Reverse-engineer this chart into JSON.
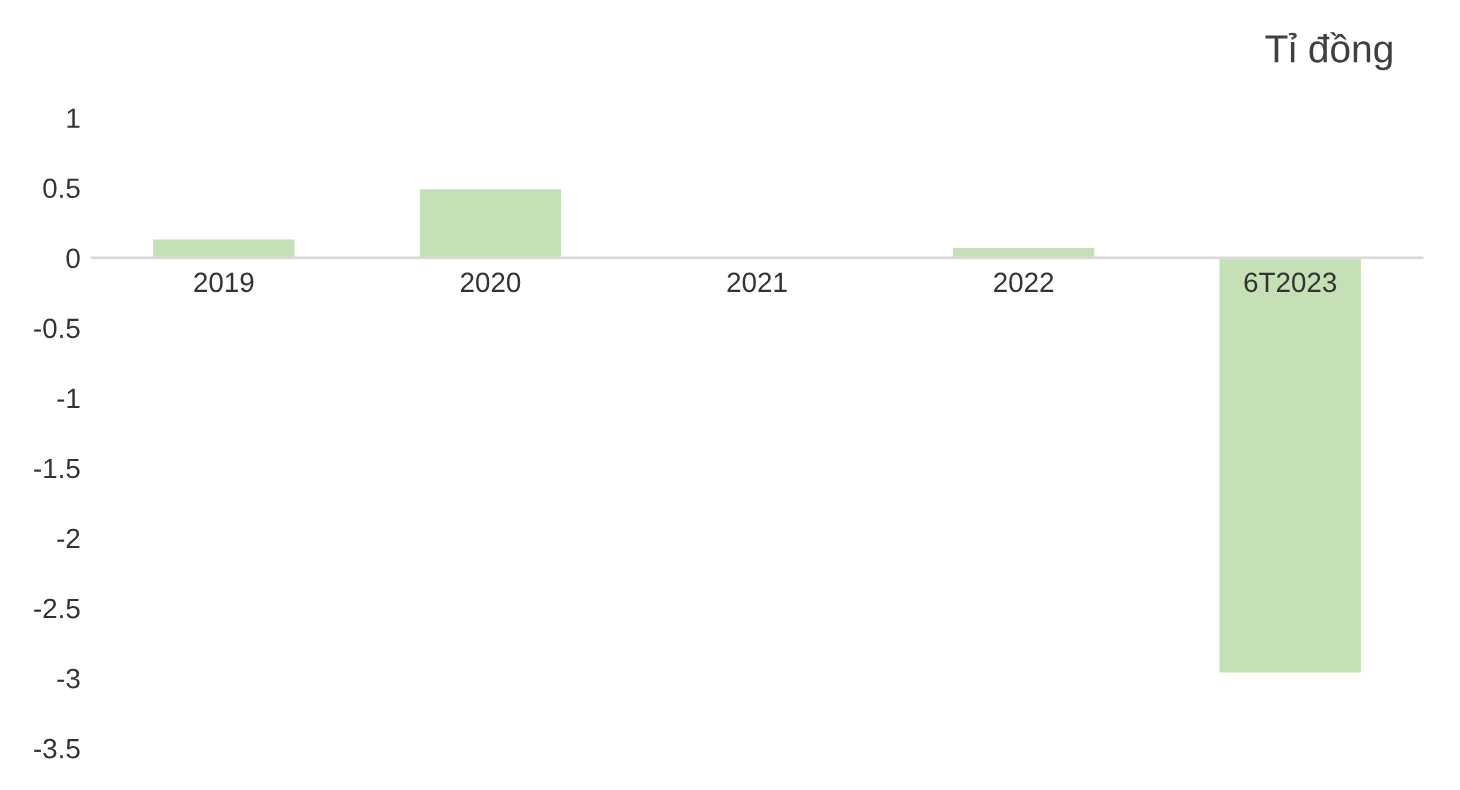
{
  "chart_data": {
    "type": "bar",
    "categories": [
      "2019",
      "2020",
      "2021",
      "2022",
      "6T2023"
    ],
    "values": [
      0.13,
      0.49,
      0,
      0.07,
      -2.96
    ],
    "color": "#c5e0b4",
    "ylim": [
      -3.5,
      1
    ],
    "yticks": [
      1,
      0.5,
      0,
      -0.5,
      -1,
      -1.5,
      -2,
      -2.5,
      -3,
      -3.5
    ],
    "annotations": [
      "Tỉ đồng"
    ],
    "grid": false,
    "legend": false
  }
}
